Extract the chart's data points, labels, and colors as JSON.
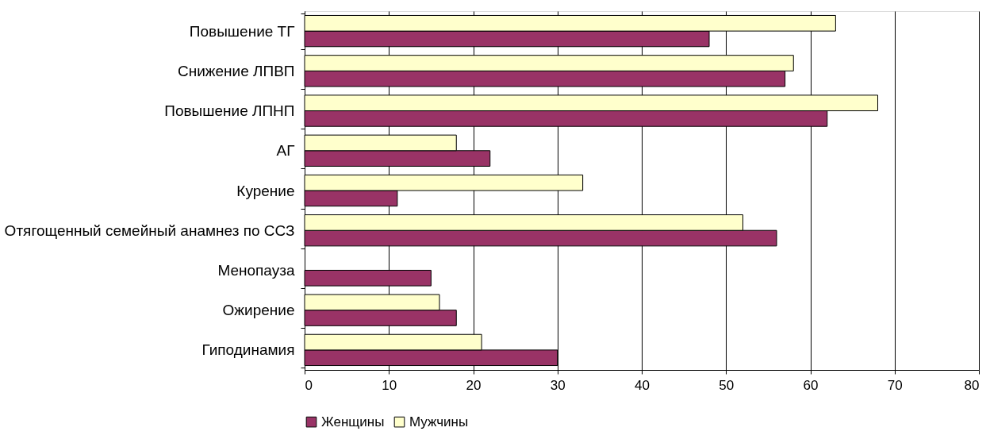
{
  "chart_data": {
    "type": "bar",
    "orientation": "horizontal",
    "categories": [
      "Повышение ТГ",
      "Снижение ЛПВП",
      "Повышение ЛПНП",
      "АГ",
      "Курение",
      "Отягощенный семейный анамнез по ССЗ",
      "Менопауза",
      "Ожирение",
      "Гиподинамия"
    ],
    "series": [
      {
        "name": "Женщины",
        "color": "#993366",
        "values": [
          48,
          57,
          62,
          22,
          11,
          56,
          15,
          18,
          30
        ]
      },
      {
        "name": "Мужчины",
        "color": "#ffffcc",
        "values": [
          63,
          58,
          68,
          18,
          33,
          52,
          null,
          16,
          21
        ]
      }
    ],
    "xlim": [
      0,
      80
    ],
    "xticks": [
      0,
      10,
      20,
      30,
      40,
      50,
      60,
      70,
      80
    ],
    "grid": "x",
    "legend": "bottom"
  }
}
